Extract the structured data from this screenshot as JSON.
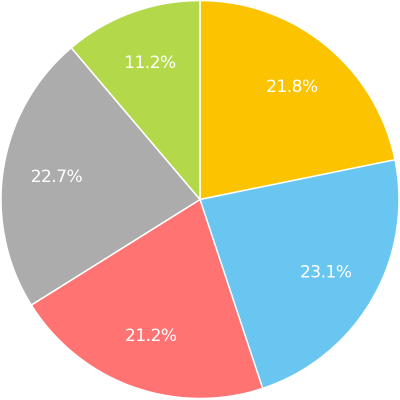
{
  "chart_data": {
    "type": "pie",
    "values": [
      21.8,
      23.1,
      21.2,
      22.7,
      11.2
    ],
    "value_labels": [
      "21.8%",
      "23.1%",
      "21.2%",
      "22.7%",
      "11.2%"
    ],
    "colors": [
      "#fbc300",
      "#68c6f0",
      "#ff7372",
      "#acacac",
      "#b3d94a"
    ]
  }
}
